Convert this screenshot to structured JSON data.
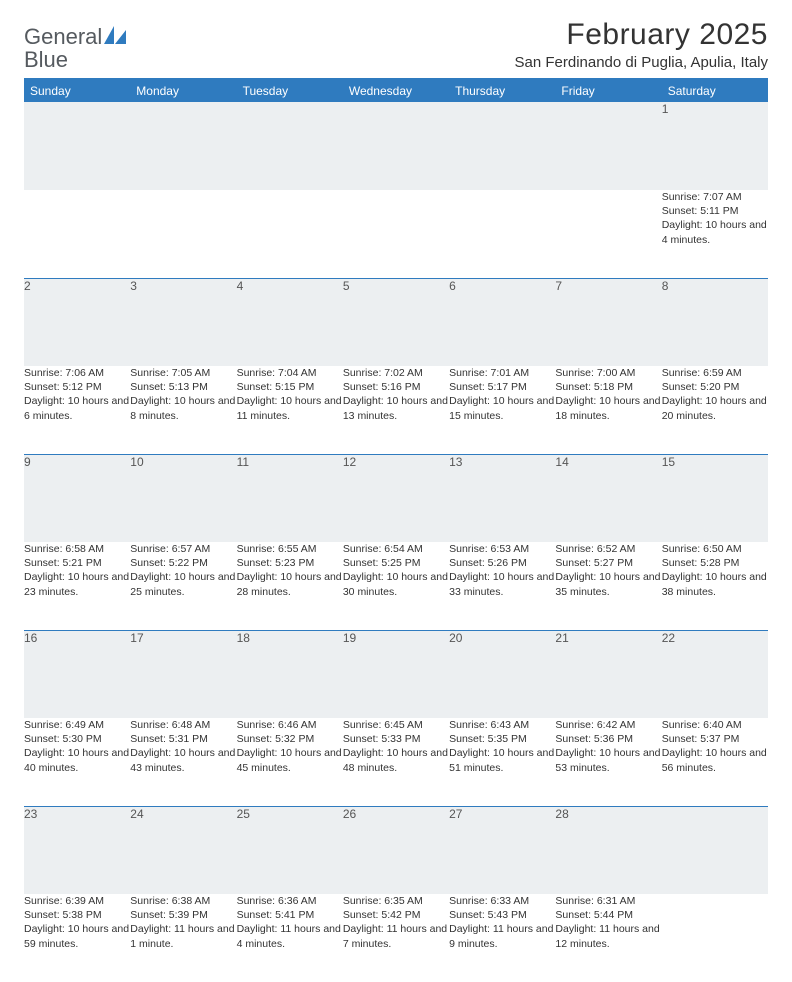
{
  "logo": {
    "text1": "General",
    "text2": "Blue"
  },
  "title": "February 2025",
  "location": "San Ferdinando di Puglia, Apulia, Italy",
  "colors": {
    "accent": "#2f7bbf",
    "header_bg": "#2f7bbf",
    "header_text": "#ffffff",
    "daynum_bg": "#eceff1",
    "text": "#333333",
    "logo_gray": "#555a5f"
  },
  "weekdays": [
    "Sunday",
    "Monday",
    "Tuesday",
    "Wednesday",
    "Thursday",
    "Friday",
    "Saturday"
  ],
  "weeks": [
    [
      null,
      null,
      null,
      null,
      null,
      null,
      {
        "n": "1",
        "sr": "7:07 AM",
        "ss": "5:11 PM",
        "dl": "10 hours and 4 minutes."
      }
    ],
    [
      {
        "n": "2",
        "sr": "7:06 AM",
        "ss": "5:12 PM",
        "dl": "10 hours and 6 minutes."
      },
      {
        "n": "3",
        "sr": "7:05 AM",
        "ss": "5:13 PM",
        "dl": "10 hours and 8 minutes."
      },
      {
        "n": "4",
        "sr": "7:04 AM",
        "ss": "5:15 PM",
        "dl": "10 hours and 11 minutes."
      },
      {
        "n": "5",
        "sr": "7:02 AM",
        "ss": "5:16 PM",
        "dl": "10 hours and 13 minutes."
      },
      {
        "n": "6",
        "sr": "7:01 AM",
        "ss": "5:17 PM",
        "dl": "10 hours and 15 minutes."
      },
      {
        "n": "7",
        "sr": "7:00 AM",
        "ss": "5:18 PM",
        "dl": "10 hours and 18 minutes."
      },
      {
        "n": "8",
        "sr": "6:59 AM",
        "ss": "5:20 PM",
        "dl": "10 hours and 20 minutes."
      }
    ],
    [
      {
        "n": "9",
        "sr": "6:58 AM",
        "ss": "5:21 PM",
        "dl": "10 hours and 23 minutes."
      },
      {
        "n": "10",
        "sr": "6:57 AM",
        "ss": "5:22 PM",
        "dl": "10 hours and 25 minutes."
      },
      {
        "n": "11",
        "sr": "6:55 AM",
        "ss": "5:23 PM",
        "dl": "10 hours and 28 minutes."
      },
      {
        "n": "12",
        "sr": "6:54 AM",
        "ss": "5:25 PM",
        "dl": "10 hours and 30 minutes."
      },
      {
        "n": "13",
        "sr": "6:53 AM",
        "ss": "5:26 PM",
        "dl": "10 hours and 33 minutes."
      },
      {
        "n": "14",
        "sr": "6:52 AM",
        "ss": "5:27 PM",
        "dl": "10 hours and 35 minutes."
      },
      {
        "n": "15",
        "sr": "6:50 AM",
        "ss": "5:28 PM",
        "dl": "10 hours and 38 minutes."
      }
    ],
    [
      {
        "n": "16",
        "sr": "6:49 AM",
        "ss": "5:30 PM",
        "dl": "10 hours and 40 minutes."
      },
      {
        "n": "17",
        "sr": "6:48 AM",
        "ss": "5:31 PM",
        "dl": "10 hours and 43 minutes."
      },
      {
        "n": "18",
        "sr": "6:46 AM",
        "ss": "5:32 PM",
        "dl": "10 hours and 45 minutes."
      },
      {
        "n": "19",
        "sr": "6:45 AM",
        "ss": "5:33 PM",
        "dl": "10 hours and 48 minutes."
      },
      {
        "n": "20",
        "sr": "6:43 AM",
        "ss": "5:35 PM",
        "dl": "10 hours and 51 minutes."
      },
      {
        "n": "21",
        "sr": "6:42 AM",
        "ss": "5:36 PM",
        "dl": "10 hours and 53 minutes."
      },
      {
        "n": "22",
        "sr": "6:40 AM",
        "ss": "5:37 PM",
        "dl": "10 hours and 56 minutes."
      }
    ],
    [
      {
        "n": "23",
        "sr": "6:39 AM",
        "ss": "5:38 PM",
        "dl": "10 hours and 59 minutes."
      },
      {
        "n": "24",
        "sr": "6:38 AM",
        "ss": "5:39 PM",
        "dl": "11 hours and 1 minute."
      },
      {
        "n": "25",
        "sr": "6:36 AM",
        "ss": "5:41 PM",
        "dl": "11 hours and 4 minutes."
      },
      {
        "n": "26",
        "sr": "6:35 AM",
        "ss": "5:42 PM",
        "dl": "11 hours and 7 minutes."
      },
      {
        "n": "27",
        "sr": "6:33 AM",
        "ss": "5:43 PM",
        "dl": "11 hours and 9 minutes."
      },
      {
        "n": "28",
        "sr": "6:31 AM",
        "ss": "5:44 PM",
        "dl": "11 hours and 12 minutes."
      },
      null
    ]
  ],
  "labels": {
    "sunrise": "Sunrise:",
    "sunset": "Sunset:",
    "daylight": "Daylight:"
  }
}
